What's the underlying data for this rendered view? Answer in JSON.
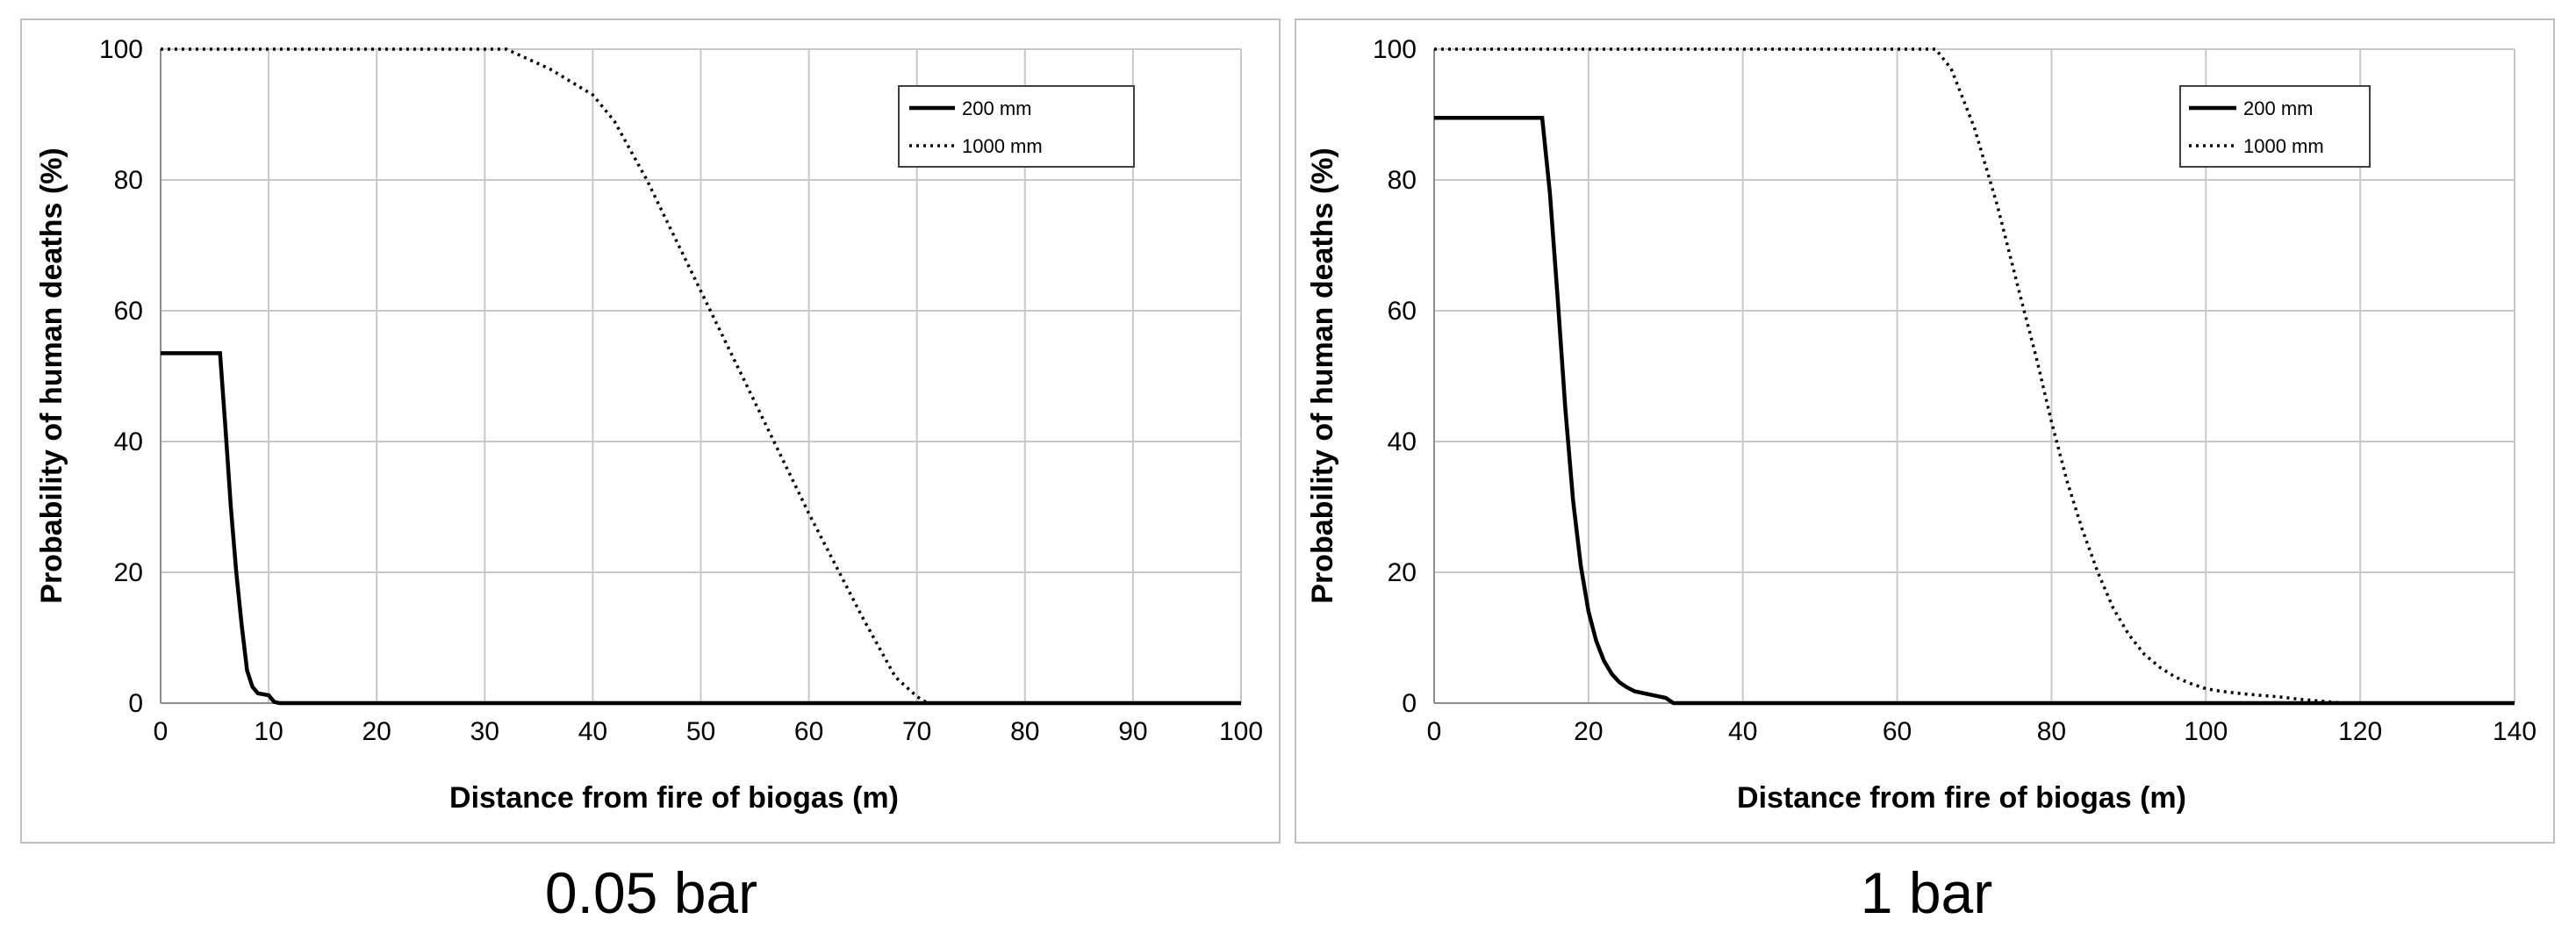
{
  "chart_data": [
    {
      "type": "line",
      "caption": "0.05 bar",
      "xlabel": "Distance from fire of biogas (m)",
      "ylabel": "Probability of human deaths (%)",
      "xlim": [
        0,
        100
      ],
      "ylim": [
        0,
        100
      ],
      "xticks": [
        0,
        10,
        20,
        30,
        40,
        50,
        60,
        70,
        80,
        90,
        100
      ],
      "yticks": [
        0,
        20,
        40,
        60,
        80,
        100
      ],
      "grid": true,
      "legend_position": "top-right",
      "series": [
        {
          "name": "200 mm",
          "style": "solid",
          "x": [
            0,
            5.5,
            6,
            6.5,
            7,
            7.5,
            8,
            8.5,
            9,
            10,
            10.5,
            11,
            100
          ],
          "y": [
            53.5,
            53.5,
            42,
            30,
            20,
            12,
            5,
            2.5,
            1.5,
            1.2,
            0.2,
            0,
            0
          ]
        },
        {
          "name": "1000 mm",
          "style": "dotted",
          "x": [
            0,
            32,
            36,
            40,
            42,
            45,
            50,
            55,
            60,
            65,
            68,
            70,
            71,
            100
          ],
          "y": [
            100,
            100,
            97,
            93,
            89,
            80,
            63,
            46,
            29,
            13,
            4,
            1,
            0,
            0
          ]
        }
      ]
    },
    {
      "type": "line",
      "caption": "1 bar",
      "xlabel": "Distance from fire of biogas (m)",
      "ylabel": "Probability of human deaths (%)",
      "xlim": [
        0,
        140
      ],
      "ylim": [
        0,
        100
      ],
      "xticks": [
        0,
        20,
        40,
        60,
        80,
        100,
        120,
        140
      ],
      "yticks": [
        0,
        20,
        40,
        60,
        80,
        100
      ],
      "grid": true,
      "legend_position": "top-right",
      "series": [
        {
          "name": "200 mm",
          "style": "solid",
          "x": [
            0,
            14,
            15,
            16,
            17,
            18,
            19,
            20,
            21,
            22,
            23,
            24,
            25,
            26,
            28,
            30,
            31,
            140
          ],
          "y": [
            89.5,
            89.5,
            78,
            62,
            45,
            31,
            21,
            14,
            9.5,
            6.5,
            4.5,
            3.2,
            2.4,
            1.8,
            1.3,
            0.8,
            0,
            0
          ]
        },
        {
          "name": "1000 mm",
          "style": "dotted",
          "x": [
            0,
            65,
            67,
            70,
            73,
            76,
            78,
            80,
            82,
            84,
            86,
            88,
            90,
            92,
            94,
            96,
            98,
            100,
            102,
            105,
            108,
            110,
            112,
            115,
            118,
            120,
            140
          ],
          "y": [
            100,
            100,
            97,
            88,
            76,
            62,
            53,
            43,
            34,
            26.5,
            20,
            14.5,
            10.5,
            7.5,
            5.5,
            4,
            3,
            2.2,
            1.8,
            1.4,
            1.1,
            0.9,
            0.6,
            0.3,
            0,
            0,
            0
          ]
        }
      ]
    }
  ]
}
